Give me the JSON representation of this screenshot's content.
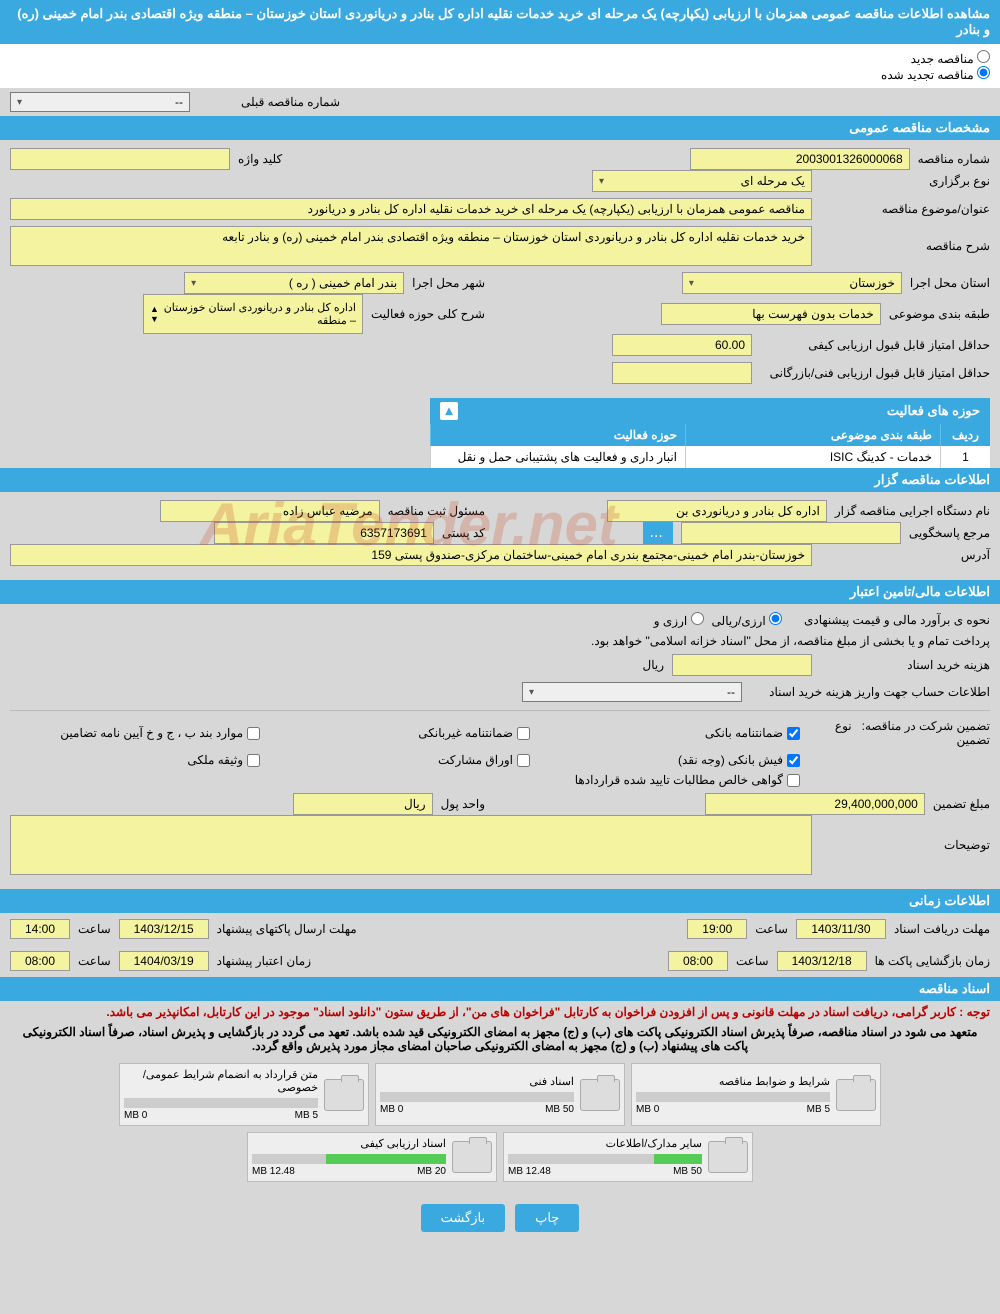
{
  "header_title": "مشاهده اطلاعات مناقصه عمومی همزمان با ارزیابی (یکپارچه) یک مرحله ای خرید خدمات نقلیه اداره کل بنادر و دریانوردی استان خوزستان – منطقه ویژه اقتصادی بندر امام خمینی (ره) و بنادر",
  "radio": {
    "new": "مناقصه جدید",
    "renewed": "مناقصه تجدید شده"
  },
  "prev_tender_label": "شماره مناقصه قبلی",
  "prev_tender_value": "--",
  "sections": {
    "general": "مشخصات مناقصه عمومی",
    "activity": "حوزه های فعالیت",
    "organizer": "اطلاعات مناقصه گزار",
    "finance": "اطلاعات مالی/تامین اعتبار",
    "time": "اطلاعات زمانی",
    "docs": "اسناد مناقصه"
  },
  "general": {
    "tender_no_lbl": "شماره مناقصه",
    "tender_no": "2003001326000068",
    "keyword_lbl": "کلید واژه",
    "keyword": "",
    "type_lbl": "نوع برگزاری",
    "type": "یک مرحله ای",
    "subject_lbl": "عنوان/موضوع مناقصه",
    "subject": "مناقصه عمومی همزمان با ارزیابی (یکپارچه) یک مرحله ای خرید خدمات نقلیه اداره کل بنادر و دریانورد",
    "desc_lbl": "شرح مناقصه",
    "desc": "خرید خدمات نقلیه اداره کل بنادر و دریانوردی استان خوزستان – منطقه ویژه اقتصادی بندر امام خمینی (ره) و بنادر تابعه",
    "province_lbl": "استان محل اجرا",
    "province": "خوزستان",
    "city_lbl": "شهر محل اجرا",
    "city": "بندر امام خمینی ( ره )",
    "class_lbl": "طبقه بندی موضوعی",
    "class_val": "خدمات بدون فهرست بها",
    "scope_lbl": "شرح کلی حوزه فعالیت",
    "scope": "اداره کل بنادر و دریانوردی استان خوزستان – منطقه",
    "min_score_lbl": "حداقل امتیاز قابل قبول ارزیابی کیفی",
    "min_score": "60.00",
    "min_score2_lbl": "حداقل امتیاز قابل قبول ارزیابی فنی/بازرگانی",
    "min_score2": ""
  },
  "activity_table": {
    "cols": {
      "idx": "ردیف",
      "c1": "طبقه بندی موضوعی",
      "c2": "حوزه فعالیت"
    },
    "rows": [
      {
        "idx": "1",
        "c1": "خدمات - کدینگ ISIC",
        "c2": "انبار داری و فعالیت های پشتیبانی حمل و نقل"
      }
    ]
  },
  "organizer": {
    "dev_lbl": "نام دستگاه اجرایی مناقصه گزار",
    "dev": "اداره کل بنادر و دریانوردی بن",
    "reg_lbl": "مسئول ثبت مناقصه",
    "reg": "مرضیه عباس زاده",
    "resp_lbl": "مرجع پاسخگویی",
    "resp": "",
    "post_lbl": "کد پستی",
    "post": "6357173691",
    "addr_lbl": "آدرس",
    "addr": "خوزستان-بندر امام خمینی-مجتمع بندری امام خمینی-ساختمان مرکزی-صندوق پستی 159"
  },
  "finance": {
    "est_lbl": "نحوه ی برآورد مالی و قیمت پیشنهادی",
    "opt1": "ارزی/ریالی",
    "opt2": "ارزی و",
    "note": "پرداخت تمام و یا بخشی از مبلغ مناقصه، از محل \"اسناد خزانه اسلامی\" خواهد بود.",
    "cost_lbl": "هزینه خرید اسناد",
    "cost": "",
    "cost_unit": "ریال",
    "acct_lbl": "اطلاعات حساب جهت واریز هزینه خرید اسناد",
    "acct": "--",
    "guar_lbl": "تضمین شرکت در مناقصه:",
    "guar_type_lbl": "نوع تضمین",
    "chk1": "ضمانتنامه بانکی",
    "chk2": "ضمانتنامه غیربانکی",
    "chk3": "موارد بند ب ، ج و خ آیین نامه تضامین",
    "chk4": "فیش بانکی (وجه نقد)",
    "chk5": "اوراق مشارکت",
    "chk6": "وثیقه ملکی",
    "chk7": "گواهی خالص مطالبات تایید شده قراردادها",
    "amount_lbl": "مبلغ تضمین",
    "amount": "29,400,000,000",
    "currency_lbl": "واحد پول",
    "currency": "ریال",
    "notes_lbl": "توضیحات",
    "notes": ""
  },
  "time": {
    "deadline_lbl": "مهلت دریافت اسناد",
    "deadline_date": "1403/11/30",
    "deadline_time_lbl": "ساعت",
    "deadline_time": "19:00",
    "send_lbl": "مهلت ارسال پاکتهای پیشنهاد",
    "send_date": "1403/12/15",
    "send_time": "14:00",
    "open_lbl": "زمان بازگشایی پاکت ها",
    "open_date": "1403/12/18",
    "open_time": "08:00",
    "valid_lbl": "زمان اعتبار پیشنهاد",
    "valid_date": "1404/03/19",
    "valid_time": "08:00"
  },
  "docs_note1": "توجه : کاربر گرامی، دریافت اسناد در مهلت قانونی و پس از افزودن فراخوان به کارتابل \"فراخوان های من\"، از طریق ستون \"دانلود اسناد\" موجود در این کارتابل، امکانپذیر می باشد.",
  "docs_note2": "متعهد می شود در اسناد مناقصه، صرفاً پذیرش اسناد الکترونیکی پاکت های (ب) و (ج) مجهز به امضای الکترونیکی قید شده باشد. تعهد می گردد در بازگشایی و پذیرش اسناد، صرفاً اسناد الکترونیکی پاکت های پیشنهاد (ب) و (ج) مجهز به امضای الکترونیکی صاحبان امضای مجاز مورد پذیرش واقع گردد.",
  "docs": [
    {
      "title": "شرایط و ضوابط مناقصه",
      "used": "0 MB",
      "max": "5 MB",
      "pct": 0
    },
    {
      "title": "اسناد فنی",
      "used": "0 MB",
      "max": "50 MB",
      "pct": 0
    },
    {
      "title": "متن قرارداد به انضمام شرایط عمومی/خصوصی",
      "used": "0 MB",
      "max": "5 MB",
      "pct": 0
    },
    {
      "title": "سایر مدارک/اطلاعات",
      "used": "12.48 MB",
      "max": "50 MB",
      "pct": 25
    },
    {
      "title": "اسناد ارزیابی کیفی",
      "used": "12.48 MB",
      "max": "20 MB",
      "pct": 62
    }
  ],
  "buttons": {
    "print": "چاپ",
    "back": "بازگشت"
  },
  "watermark": "AriaTender.net"
}
